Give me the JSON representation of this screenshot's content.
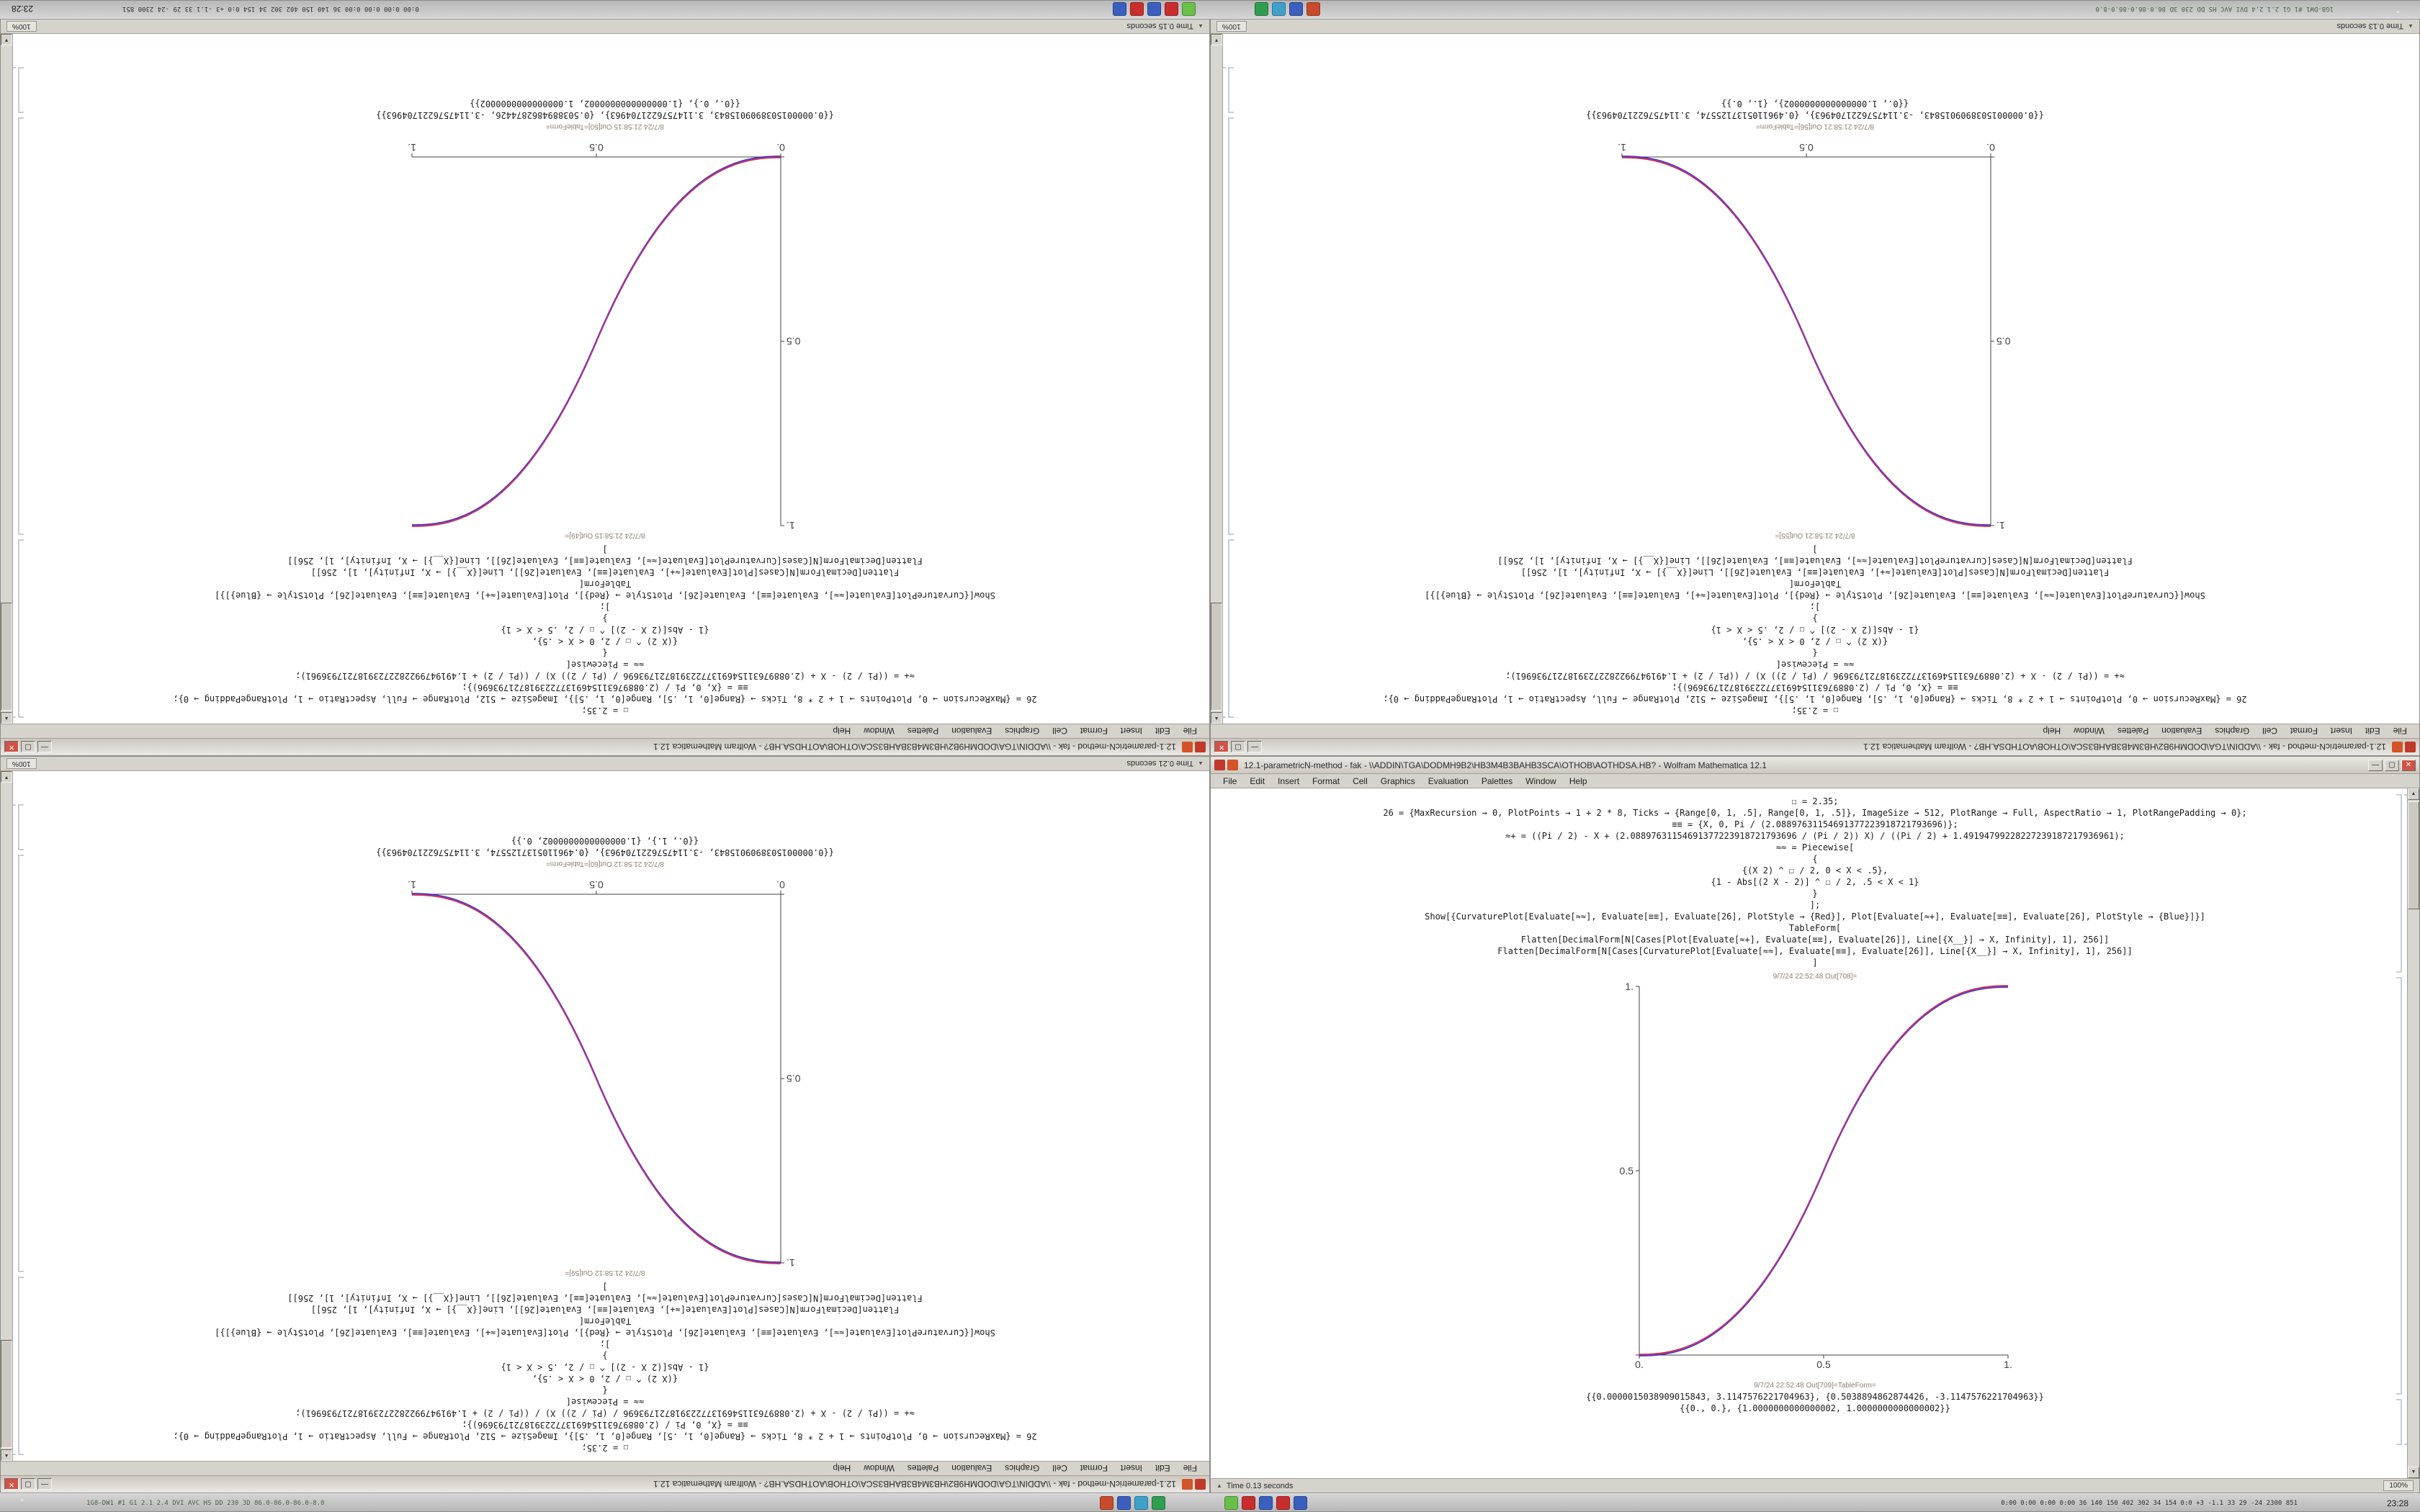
{
  "window_title": "12.1-parametricN-method - fak - \\\\ADDIN\\TGA\\DODMH9B2\\HB3M4B3BAHB3SCA\\OTHOB\\AOTHDSA.HB? - Wolfram Mathematica 12.1",
  "menu": {
    "items": [
      "File",
      "Edit",
      "Insert",
      "Format",
      "Cell",
      "Graphics",
      "Evaluation",
      "Palettes",
      "Window",
      "Help"
    ]
  },
  "glyphs": {
    "minimize": "—",
    "maximize": "▢",
    "close": "✕",
    "scroll_up": "▲",
    "scroll_down": "▼",
    "status_caret": "▲"
  },
  "code_lines": [
    "☐ = 2.35;",
    "26 = {MaxRecursion → 0, PlotPoints → 1 + 2 * 8, Ticks → {Range[0, 1, .5], Range[0, 1, .5]}, ImageSize → 512, PlotRange → Full, AspectRatio → 1, PlotRangePadding → 0};",
    "≡≡ = {X, 0, Pi / (2.08897631154691377223918721793696)};",
    "≈+ = ((Pi / 2) - X + (2.08897631154691377223918721793696 / (Pi / 2)) X) / ((Pi / 2) + 1.49194799228227239187217936961);",
    "≈≈ = Piecewise[",
    "{",
    "{(X 2) ^ ☐ / 2, 0 < X < .5},",
    "{1 - Abs[(2 X - 2)] ^ ☐ / 2, .5 < X < 1}",
    "}",
    "];",
    "Show[{CurvaturePlot[Evaluate[≈≈], Evaluate[≡≡], Evaluate[26], PlotStyle → {Red}], Plot[Evaluate[≈+], Evaluate[≡≡], Evaluate[26], PlotStyle → {Blue}]}]",
    "TableForm[",
    "Flatten[DecimalForm[N[Cases[Plot[Evaluate[≈+], Evaluate[≡≡], Evaluate[26]], Line[{X__}] → X, Infinity], 1], 256]]",
    "Flatten[DecimalForm[N[Cases[CurvaturePlot[Evaluate[≈≈], Evaluate[≡≡], Evaluate[26]], Line[{X__}] → X, Infinity], 1], 256]]",
    "]"
  ],
  "windows": [
    {
      "out_label_plot": "8/7/24 21:58:15 Out[49]=",
      "out_label_table": "8/7/24 21:58:15 Out[50]=TableForm=",
      "outputs": [
        "{{0.0000015038909015843, 3.1147576221704963}, {0.5038894862874426, -3.1147576221704963}}",
        "{{0., 0.}, {1.0000000000000002, 1.0000000000000002}}"
      ],
      "status_time": "Time 0.15 seconds",
      "zoom": "100%",
      "plot": {
        "type": "line",
        "direction": "rising",
        "exponent": 2.35,
        "x_ticks": [
          "0.",
          "0.5",
          "1."
        ],
        "y_ticks": [
          "",
          "0.5",
          "1."
        ],
        "x_range": [
          0,
          1
        ],
        "y_range": [
          0,
          1
        ],
        "colors": [
          "#cc2020",
          "#2020cc",
          "#a832a8"
        ]
      }
    },
    {
      "out_label_plot": "8/7/24 21:58:21 Out[55]=",
      "out_label_table": "8/7/24 21:58:21 Out[56]=TableForm=",
      "outputs": [
        "{{0.0000015038909015843, -3.1147576221704963}, {0.4961105137125574, 3.1147576221704963}}",
        "{{0., 1.0000000000000002}, {1., 0.}}"
      ],
      "status_time": "Time 0.13 seconds",
      "zoom": "100%",
      "plot": {
        "type": "line",
        "direction": "falling",
        "exponent": 2.35,
        "x_ticks": [
          "0.",
          "0.5",
          "1."
        ],
        "y_ticks": [
          "",
          "0.5",
          "1."
        ],
        "x_range": [
          0,
          1
        ],
        "y_range": [
          0,
          1
        ],
        "colors": [
          "#cc2020",
          "#2020cc",
          "#a832a8"
        ]
      }
    },
    {
      "out_label_plot": "8/7/24 21:58:12 Out[59]=",
      "out_label_table": "8/7/24 21:58:12 Out[60]=TableForm=",
      "outputs": [
        "{{0.0000015038909015843, -3.1147576221704963}, {0.4961105137125574, 3.1147576221704963}}",
        "{{0., 1.}, {1.0000000000000002, 0.}}"
      ],
      "status_time": "Time 0.21 seconds",
      "zoom": "100%",
      "plot": {
        "type": "line",
        "direction": "falling",
        "exponent": 2.35,
        "x_ticks": [
          "0.",
          "0.5",
          "1."
        ],
        "y_ticks": [
          "",
          "0.5",
          "1."
        ],
        "x_range": [
          0,
          1
        ],
        "y_range": [
          0,
          1
        ],
        "colors": [
          "#cc2020",
          "#2020cc",
          "#a832a8"
        ]
      }
    },
    {
      "out_label_plot": "9/7/24 22:52:48 Out[708]=",
      "out_label_table": "9/7/24 22:52:48 Out[709]=TableForm=",
      "outputs": [
        "{{0.0000015038909015843, 3.1147576221704963}, {0.5038894862874426, -3.1147576221704963}}",
        "{{0., 0.}, {1.0000000000000002, 1.0000000000000002}}"
      ],
      "status_time": "Time 0.13 seconds",
      "zoom": "100%",
      "plot": {
        "type": "line",
        "direction": "rising",
        "exponent": 2.35,
        "x_ticks": [
          "0.",
          "0.5",
          "1."
        ],
        "y_ticks": [
          "",
          "0.5",
          "1."
        ],
        "x_range": [
          0,
          1
        ],
        "y_range": [
          0,
          1
        ],
        "colors": [
          "#cc2020",
          "#2020cc",
          "#a832a8"
        ]
      }
    }
  ],
  "taskbar": {
    "caret": "⌃",
    "left_stats": "1G8-DW1 #1 G1 2.1 2.4 DVI AVC HS DD 230 3D 86.0-86.0-86.0-8.0",
    "icons_group1": [
      {
        "name": "taskbar-app-icon-1",
        "color": "#c94a2d"
      },
      {
        "name": "taskbar-app-icon-2",
        "color": "#3a5fbf"
      },
      {
        "name": "taskbar-app-icon-3",
        "color": "#3fa0c9"
      },
      {
        "name": "taskbar-app-icon-4",
        "color": "#2f9e52"
      }
    ],
    "icons_group2": [
      {
        "name": "taskbar-app-icon-5",
        "color": "#6abf4a"
      },
      {
        "name": "taskbar-app-icon-6",
        "color": "#c92d2d"
      },
      {
        "name": "taskbar-app-icon-7",
        "color": "#3a5fbf"
      },
      {
        "name": "taskbar-app-icon-8",
        "color": "#c92d2d"
      },
      {
        "name": "taskbar-app-icon-9",
        "color": "#3a5fbf"
      }
    ],
    "right_stats": "0:00 0:00 0:00 0:00 36 140 150 402 302 34 154 0:0 +3 -1.1 33 29 -24 2300 851",
    "clock": "23:28"
  }
}
